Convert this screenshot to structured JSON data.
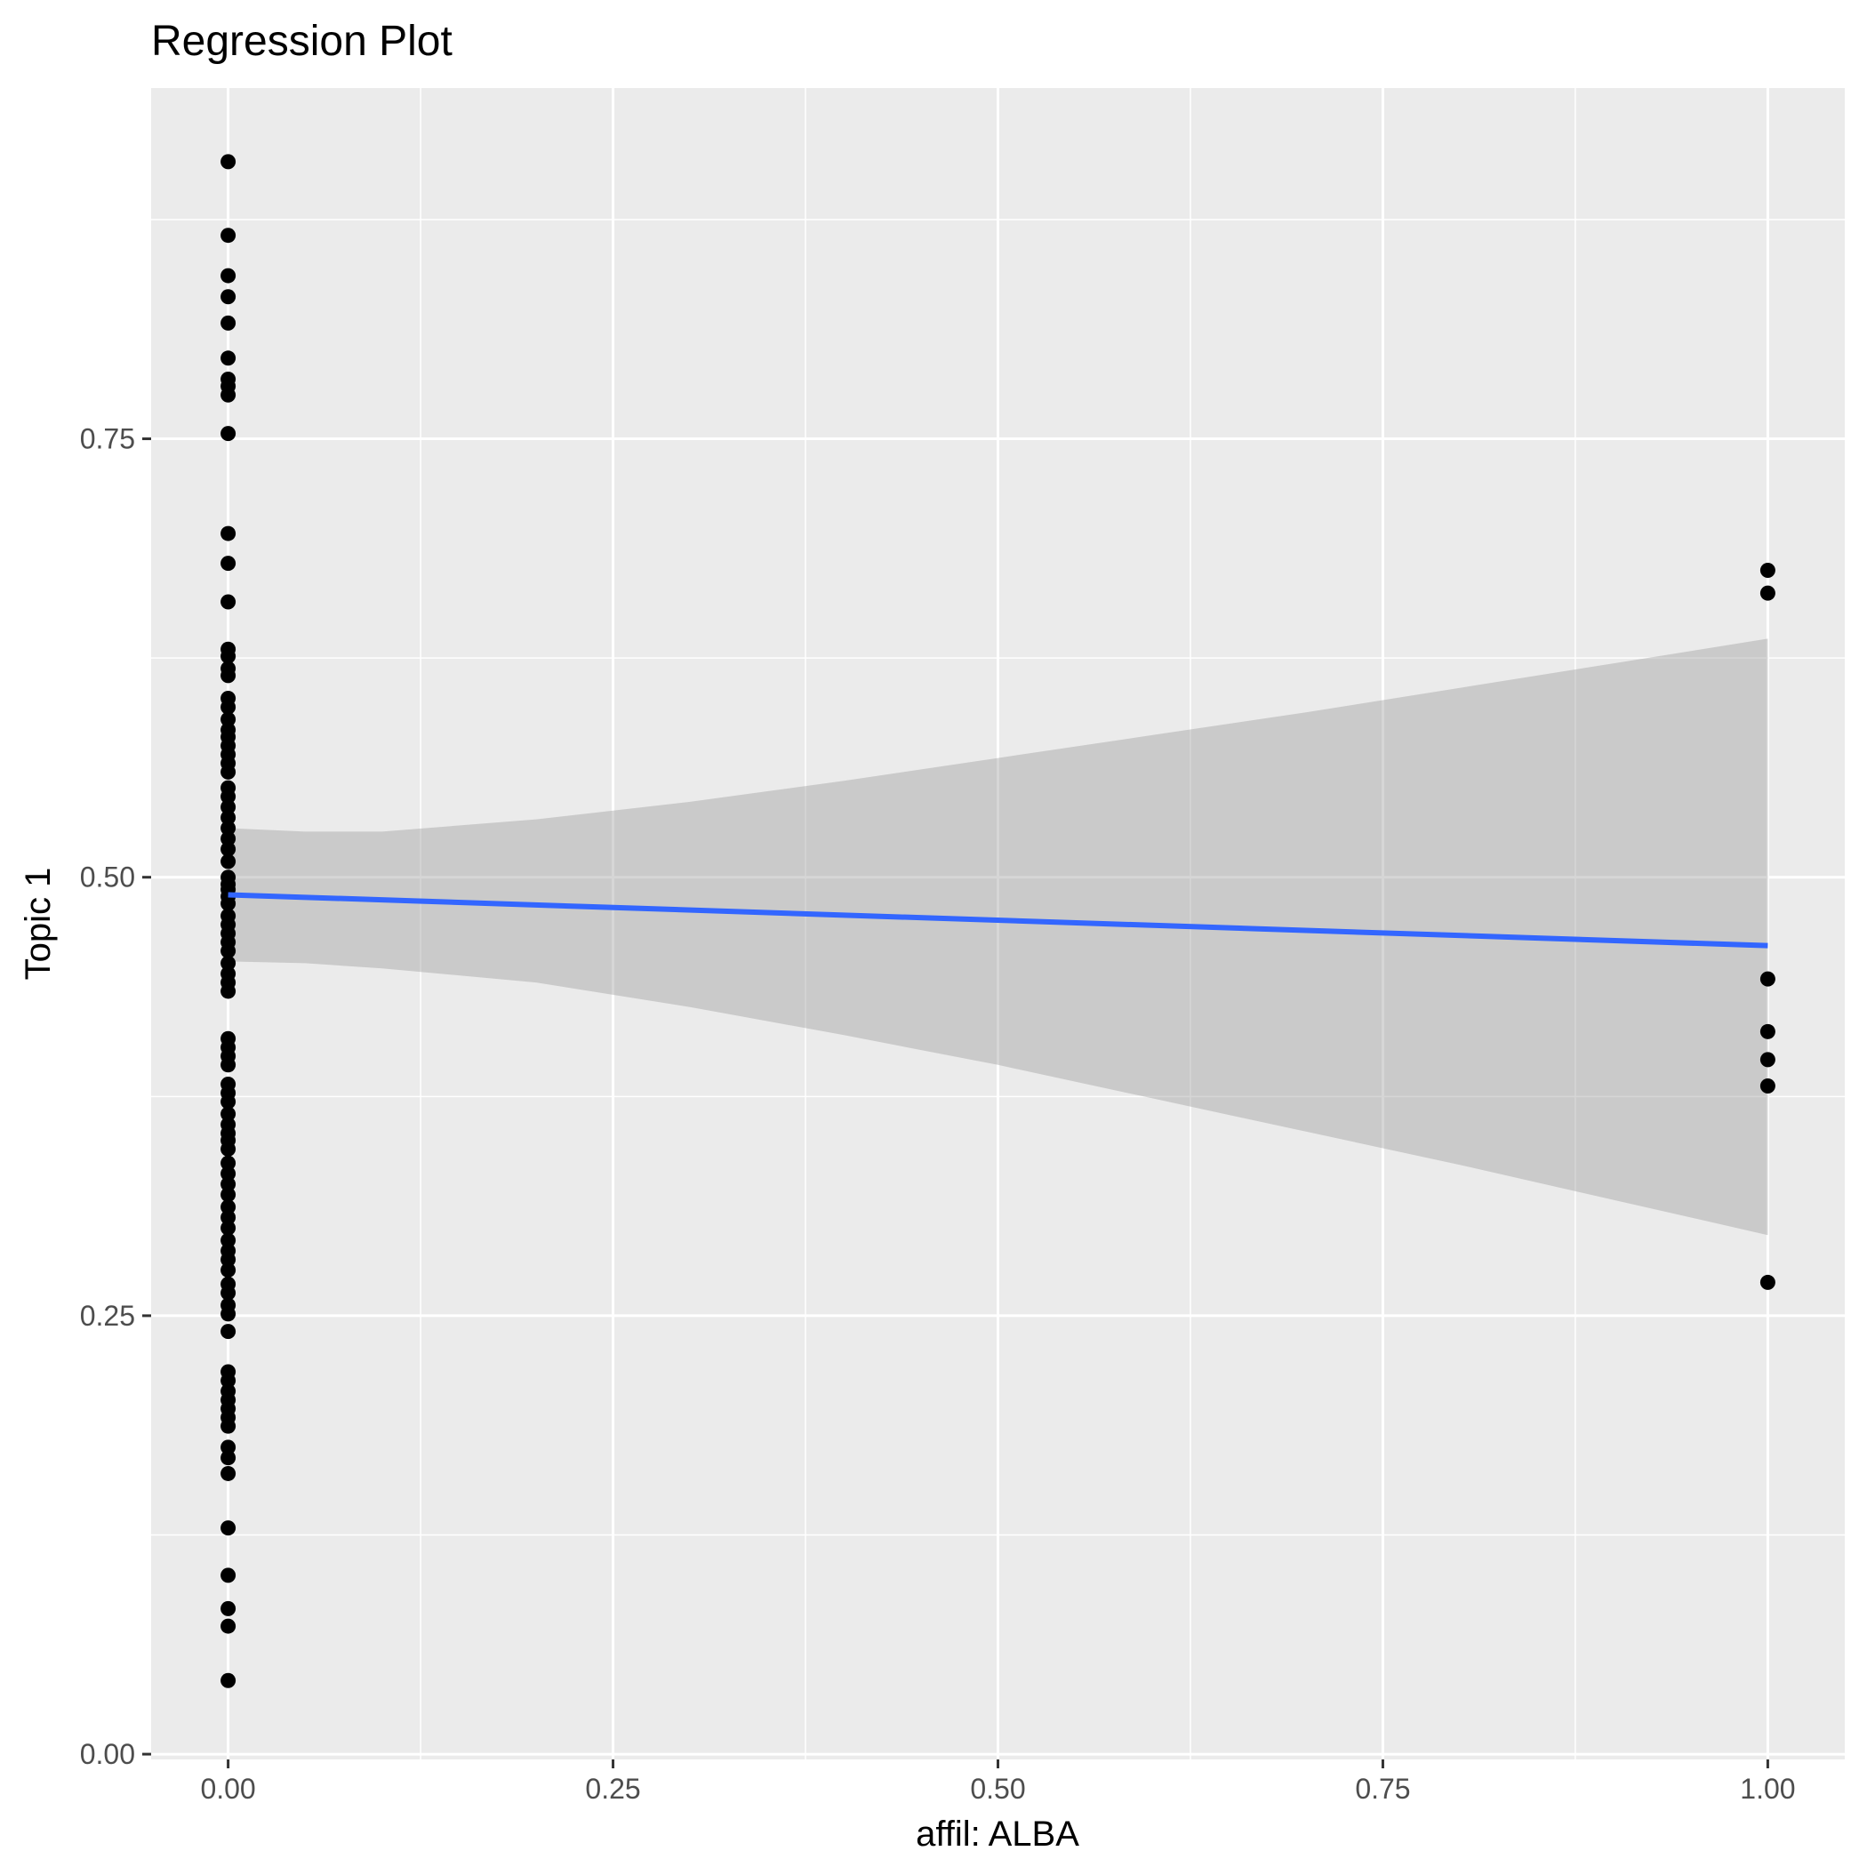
{
  "chart_data": {
    "type": "scatter",
    "title": "Regression Plot",
    "xlabel": "affil: ALBA",
    "ylabel": "Topic 1",
    "xlim": [
      -0.05,
      1.05
    ],
    "ylim": [
      -0.003,
      0.95
    ],
    "x_ticks": [
      {
        "value": 0.0,
        "label": "0.00"
      },
      {
        "value": 0.25,
        "label": "0.25"
      },
      {
        "value": 0.5,
        "label": "0.50"
      },
      {
        "value": 0.75,
        "label": "0.75"
      },
      {
        "value": 1.0,
        "label": "1.00"
      }
    ],
    "y_ticks": [
      {
        "value": 0.0,
        "label": "0.00"
      },
      {
        "value": 0.25,
        "label": "0.25"
      },
      {
        "value": 0.5,
        "label": "0.50"
      },
      {
        "value": 0.75,
        "label": "0.75"
      }
    ],
    "x_minor_breaks": [
      0.125,
      0.375,
      0.625,
      0.875
    ],
    "y_minor_breaks": [
      0.125,
      0.375,
      0.625,
      0.875
    ],
    "grid": true,
    "colors": {
      "panel": "#ebebeb",
      "grid": "#ffffff",
      "points": "#000000",
      "line": "#3366ff",
      "ribbon": "#999999"
    },
    "points": {
      "x0_y": [
        0.908,
        0.866,
        0.843,
        0.831,
        0.816,
        0.796,
        0.784,
        0.78,
        0.775,
        0.753,
        0.696,
        0.679,
        0.657,
        0.63,
        0.626,
        0.619,
        0.615,
        0.602,
        0.597,
        0.59,
        0.584,
        0.58,
        0.575,
        0.57,
        0.565,
        0.56,
        0.551,
        0.546,
        0.54,
        0.534,
        0.528,
        0.522,
        0.516,
        0.509,
        0.5,
        0.496,
        0.493,
        0.489,
        0.485,
        0.478,
        0.473,
        0.468,
        0.463,
        0.458,
        0.451,
        0.445,
        0.44,
        0.435,
        0.408,
        0.403,
        0.398,
        0.393,
        0.382,
        0.377,
        0.372,
        0.365,
        0.359,
        0.354,
        0.35,
        0.345,
        0.337,
        0.331,
        0.325,
        0.319,
        0.312,
        0.306,
        0.3,
        0.293,
        0.287,
        0.282,
        0.276,
        0.268,
        0.263,
        0.256,
        0.251,
        0.241,
        0.218,
        0.213,
        0.207,
        0.202,
        0.197,
        0.192,
        0.187,
        0.175,
        0.169,
        0.16,
        0.129,
        0.102,
        0.083,
        0.073,
        0.042
      ],
      "x1_y": [
        0.675,
        0.662,
        0.442,
        0.412,
        0.396,
        0.381,
        0.269
      ]
    },
    "regression_line": {
      "x": [
        0,
        1
      ],
      "y": [
        0.49,
        0.461
      ]
    },
    "confidence_band": {
      "x": [
        0.0,
        0.05,
        0.1,
        0.2,
        0.3,
        0.4,
        0.5,
        0.6,
        0.7,
        0.8,
        0.9,
        1.0
      ],
      "upper": [
        0.528,
        0.526,
        0.526,
        0.533,
        0.543,
        0.555,
        0.568,
        0.581,
        0.594,
        0.608,
        0.622,
        0.636
      ],
      "lower": [
        0.452,
        0.451,
        0.448,
        0.44,
        0.426,
        0.41,
        0.393,
        0.374,
        0.355,
        0.336,
        0.316,
        0.296
      ]
    }
  }
}
